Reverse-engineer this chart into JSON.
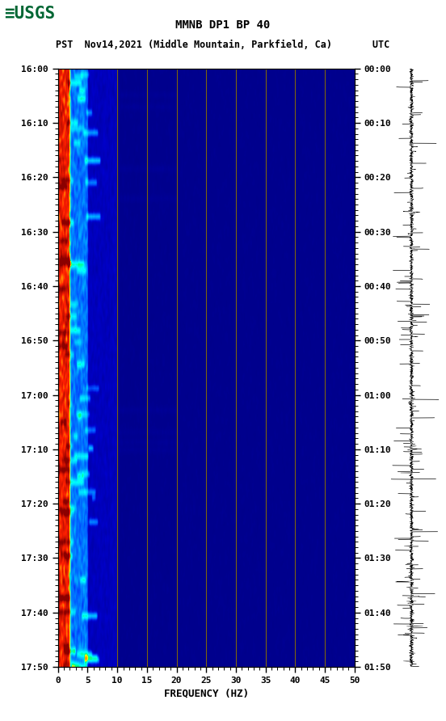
{
  "title_line1": "MMNB DP1 BP 40",
  "title_line2": "PST  Nov14,2021 (Middle Mountain, Parkfield, Ca)       UTC",
  "freq_min": 0,
  "freq_max": 50,
  "freq_label": "FREQUENCY (HZ)",
  "left_time_labels": [
    "16:00",
    "16:10",
    "16:20",
    "16:30",
    "16:40",
    "16:50",
    "17:00",
    "17:10",
    "17:20",
    "17:30",
    "17:40",
    "17:50"
  ],
  "right_time_labels": [
    "00:00",
    "00:10",
    "00:20",
    "00:30",
    "00:40",
    "00:50",
    "01:00",
    "01:10",
    "01:20",
    "01:30",
    "01:40",
    "01:50"
  ],
  "freq_ticks": [
    0,
    5,
    10,
    15,
    20,
    25,
    30,
    35,
    40,
    45,
    50
  ],
  "vertical_lines_freq": [
    10,
    15,
    20,
    25,
    30,
    35,
    40,
    45
  ],
  "background_color": "#ffffff",
  "fig_width": 5.52,
  "fig_height": 8.92,
  "dpi": 100
}
